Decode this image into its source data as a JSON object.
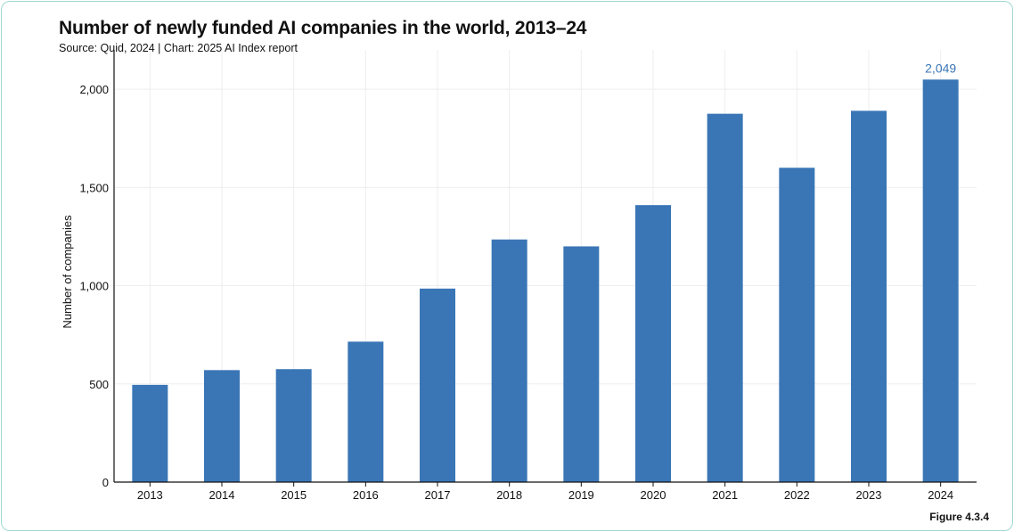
{
  "header": {
    "title": "Number of newly funded AI companies in the world, 2013–24",
    "source": "Source: Quid, 2024 | Chart: 2025 AI Index report"
  },
  "footer": {
    "figure_label": "Figure 4.3.4"
  },
  "colors": {
    "bar": "#3a76b6",
    "highlight_label": "#3a76b6",
    "grid": "#eeeeee",
    "frame": "#9fd8d2"
  },
  "chart_data": {
    "type": "bar",
    "title": "Number of newly funded AI companies in the world, 2013–24",
    "xlabel": "",
    "ylabel": "Number of companies",
    "categories": [
      "2013",
      "2014",
      "2015",
      "2016",
      "2017",
      "2018",
      "2019",
      "2020",
      "2021",
      "2022",
      "2023",
      "2024"
    ],
    "values": [
      495,
      570,
      575,
      715,
      985,
      1235,
      1200,
      1410,
      1875,
      1600,
      1890,
      2049
    ],
    "ylim": [
      0,
      2200
    ],
    "yticks": [
      0,
      500,
      1000,
      1500,
      2000
    ],
    "ytick_labels": [
      "0",
      "500",
      "1,000",
      "1,500",
      "2,000"
    ],
    "data_labels": [
      {
        "category": "2024",
        "text": "2,049"
      }
    ],
    "grid": true,
    "legend": "none"
  }
}
